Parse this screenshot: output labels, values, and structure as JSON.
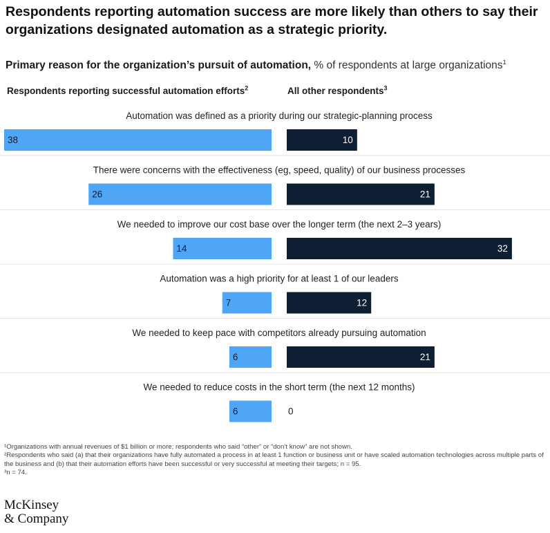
{
  "title": "Respondents reporting automation success are more likely than others to say their organizations designated automation as a strategic priority.",
  "subtitle": {
    "bold": "Primary reason for the organization’s pursuit of automation,",
    "normal": "% of respondents at large organizations",
    "sup": "1"
  },
  "legend": {
    "left": {
      "label": "Respondents reporting successful automation efforts",
      "sup": "2",
      "color": "#50a6f6"
    },
    "right": {
      "label": "All other respondents",
      "sup": "3",
      "color": "#0f1f33"
    }
  },
  "chart_data": {
    "type": "bar",
    "orientation": "horizontal-diverging",
    "categories": [
      "Automation was defined as a priority during our strategic-planning process",
      "There were concerns with the effectiveness (eg, speed, quality) of our business processes",
      "We needed to improve our cost base over the longer term (the next 2–3 years)",
      "Automation was a high priority for at least 1 of our leaders",
      "We needed to keep pace with competitors already pursuing automation",
      "We needed to reduce costs in the short term (the next 12 months)"
    ],
    "series": [
      {
        "name": "Respondents reporting successful automation efforts",
        "values": [
          38,
          26,
          14,
          7,
          6,
          6
        ]
      },
      {
        "name": "All other respondents",
        "values": [
          10,
          21,
          32,
          12,
          21,
          0
        ]
      }
    ],
    "xlim": [
      0,
      38
    ]
  },
  "footnotes": [
    "¹Organizations with annual revenues of $1 billion or more; respondents who said “other” or “don’t know” are not shown.",
    "²Respondents who said (a) that their organizations have fully automated a process in at least 1 function or business unit or have scaled automation technologies across multiple parts of the business and (b) that their automation efforts have been successful or very successful at meeting their targets; n = 95.",
    "³n = 74."
  ],
  "logo": {
    "line1": "McKinsey",
    "line2": "& Company"
  }
}
